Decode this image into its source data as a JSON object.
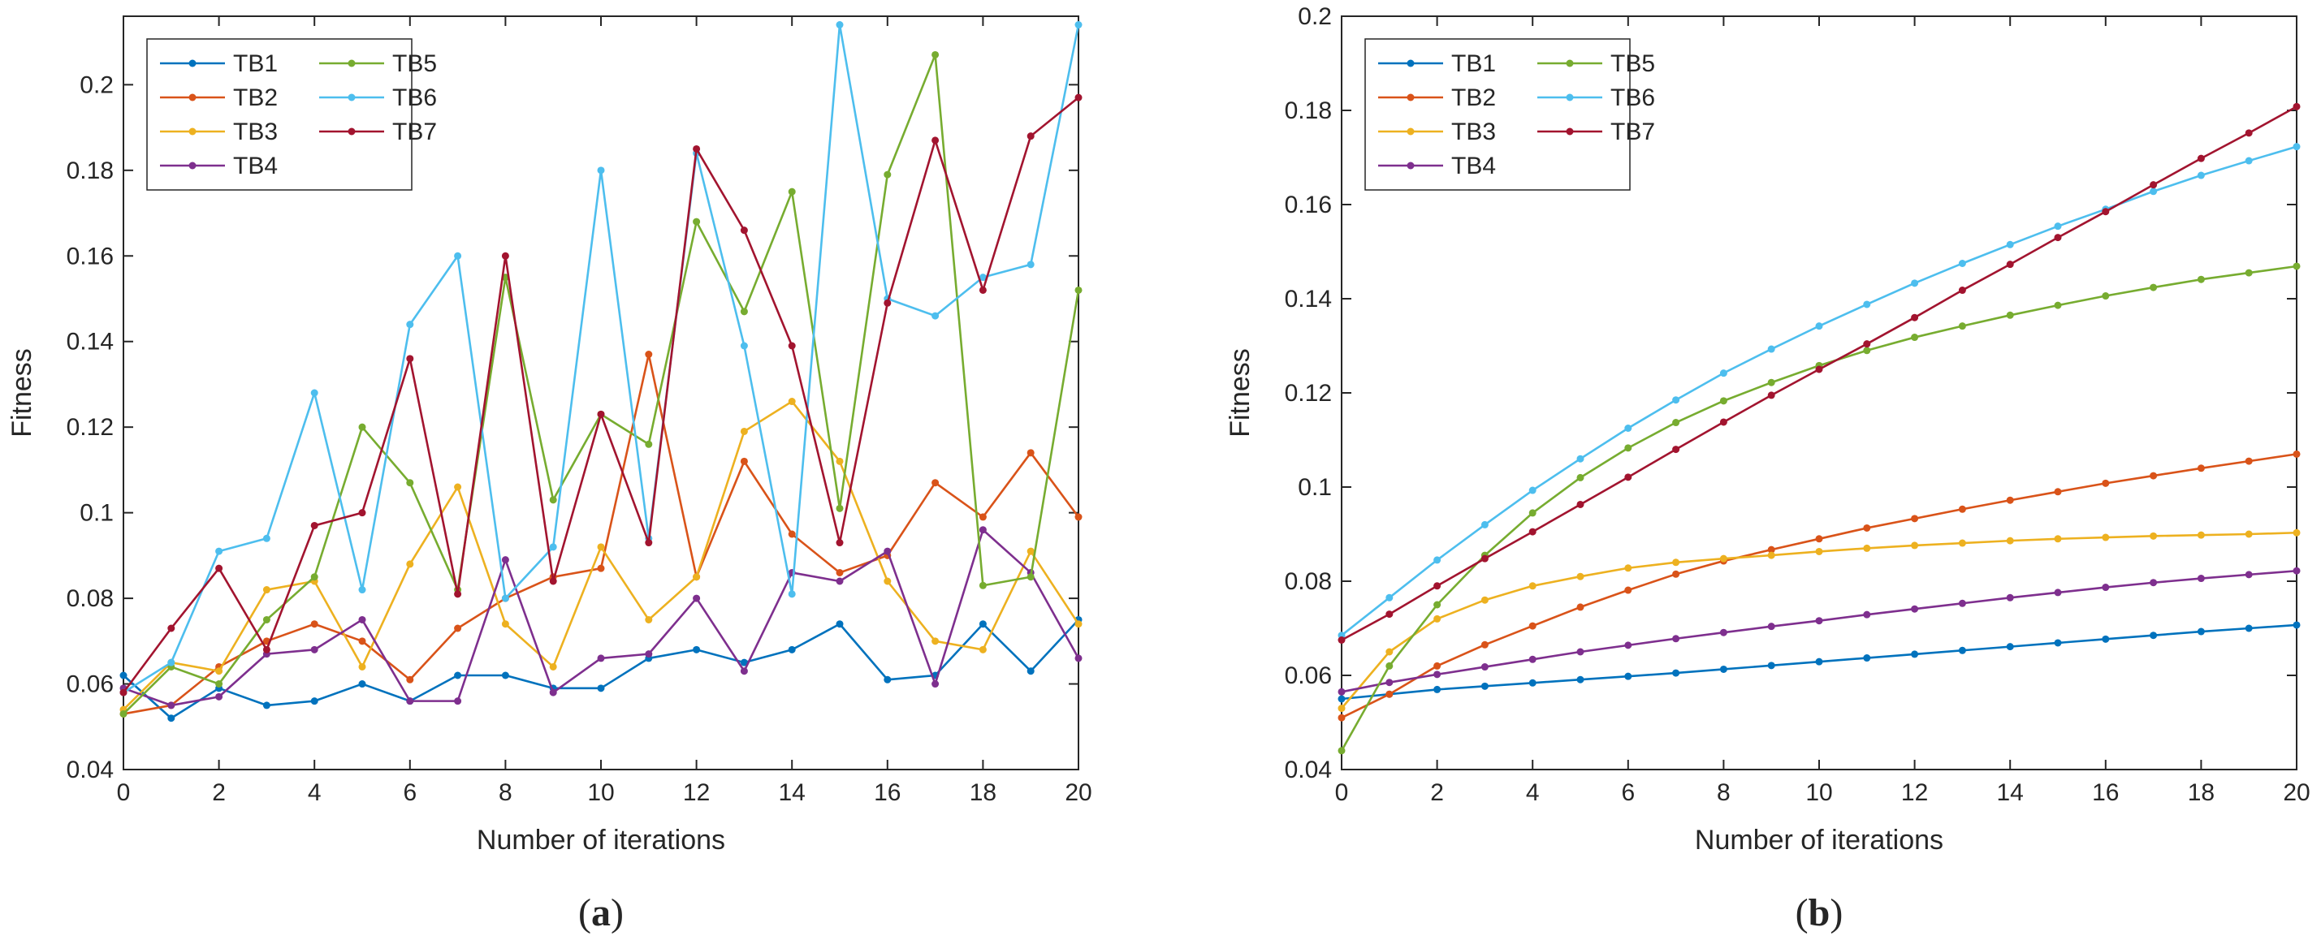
{
  "colors": {
    "TB1": "#0072BD",
    "TB2": "#D95319",
    "TB3": "#EDB120",
    "TB4": "#7E2F8E",
    "TB5": "#77AC30",
    "TB6": "#4DBEEE",
    "TB7": "#A2142F"
  },
  "chart_data": [
    {
      "type": "line",
      "panel_label": "a",
      "caption": "(a)",
      "xlabel": "Number of iterations",
      "ylabel": "Fitness",
      "xlim": [
        0,
        20
      ],
      "ylim": [
        0.04,
        0.216
      ],
      "xticks": [
        0,
        2,
        4,
        6,
        8,
        10,
        12,
        14,
        16,
        18,
        20
      ],
      "yticks": [
        0.04,
        0.06,
        0.08,
        0.1,
        0.12,
        0.14,
        0.16,
        0.18,
        0.2
      ],
      "ytick_labels": [
        "0.04",
        "0.06",
        "0.08",
        "0.1",
        "0.12",
        "0.14",
        "0.16",
        "0.18",
        "0.2"
      ],
      "legend": "top-left",
      "x": [
        0,
        1,
        2,
        3,
        4,
        5,
        6,
        7,
        8,
        9,
        10,
        11,
        12,
        13,
        14,
        15,
        16,
        17,
        18,
        19,
        20
      ],
      "series": [
        {
          "name": "TB1",
          "values": [
            0.062,
            0.052,
            0.059,
            0.055,
            0.056,
            0.06,
            0.056,
            0.062,
            0.062,
            0.059,
            0.059,
            0.066,
            0.068,
            0.065,
            0.068,
            0.074,
            0.061,
            0.062,
            0.074,
            0.063,
            0.075
          ]
        },
        {
          "name": "TB2",
          "values": [
            0.053,
            0.055,
            0.064,
            0.07,
            0.074,
            0.07,
            0.061,
            0.073,
            0.08,
            0.085,
            0.087,
            0.137,
            0.085,
            0.112,
            0.095,
            0.086,
            0.09,
            0.107,
            0.099,
            0.114,
            0.099
          ]
        },
        {
          "name": "TB3",
          "values": [
            0.054,
            0.065,
            0.063,
            0.082,
            0.084,
            0.064,
            0.088,
            0.106,
            0.074,
            0.064,
            0.092,
            0.075,
            0.085,
            0.119,
            0.126,
            0.112,
            0.084,
            0.07,
            0.068,
            0.091,
            0.074
          ]
        },
        {
          "name": "TB4",
          "values": [
            0.059,
            0.055,
            0.057,
            0.067,
            0.068,
            0.075,
            0.056,
            0.056,
            0.089,
            0.058,
            0.066,
            0.067,
            0.08,
            0.063,
            0.086,
            0.084,
            0.091,
            0.06,
            0.096,
            0.086,
            0.066
          ]
        },
        {
          "name": "TB5",
          "values": [
            0.053,
            0.064,
            0.06,
            0.075,
            0.085,
            0.12,
            0.107,
            0.082,
            0.155,
            0.103,
            0.123,
            0.116,
            0.168,
            0.147,
            0.175,
            0.101,
            0.179,
            0.207,
            0.083,
            0.085,
            0.152
          ]
        },
        {
          "name": "TB6",
          "values": [
            0.058,
            0.065,
            0.091,
            0.094,
            0.128,
            0.082,
            0.144,
            0.16,
            0.08,
            0.092,
            0.18,
            0.094,
            0.184,
            0.139,
            0.081,
            0.214,
            0.15,
            0.146,
            0.155,
            0.158,
            0.214
          ]
        },
        {
          "name": "TB7",
          "values": [
            0.058,
            0.073,
            0.087,
            0.068,
            0.097,
            0.1,
            0.136,
            0.081,
            0.16,
            0.084,
            0.123,
            0.093,
            0.185,
            0.166,
            0.139,
            0.093,
            0.149,
            0.187,
            0.152,
            0.188,
            0.197
          ]
        }
      ]
    },
    {
      "type": "line",
      "panel_label": "b",
      "caption": "(b)",
      "xlabel": "Number of iterations",
      "ylabel": "Fitness",
      "xlim": [
        0,
        20
      ],
      "ylim": [
        0.04,
        0.2
      ],
      "xticks": [
        0,
        2,
        4,
        6,
        8,
        10,
        12,
        14,
        16,
        18,
        20
      ],
      "yticks": [
        0.04,
        0.06,
        0.08,
        0.1,
        0.12,
        0.14,
        0.16,
        0.18,
        0.2
      ],
      "ytick_labels": [
        "0.04",
        "0.06",
        "0.08",
        "0.1",
        "0.12",
        "0.14",
        "0.16",
        "0.18",
        "0.2"
      ],
      "legend": "top-left",
      "x": [
        0,
        1,
        2,
        3,
        4,
        5,
        6,
        7,
        8,
        9,
        10,
        11,
        12,
        13,
        14,
        15,
        16,
        17,
        18,
        19,
        20
      ],
      "series": [
        {
          "name": "TB1",
          "values": [
            0.055,
            0.056,
            0.057,
            0.0577,
            0.0584,
            0.0591,
            0.0598,
            0.0605,
            0.0613,
            0.0621,
            0.0629,
            0.0637,
            0.0645,
            0.0653,
            0.0661,
            0.0669,
            0.0677,
            0.0685,
            0.0693,
            0.07,
            0.0707
          ]
        },
        {
          "name": "TB2",
          "values": [
            0.051,
            0.056,
            0.062,
            0.0665,
            0.0705,
            0.0745,
            0.0781,
            0.0815,
            0.0843,
            0.0867,
            0.089,
            0.0913,
            0.0933,
            0.0953,
            0.0972,
            0.099,
            0.1008,
            0.1024,
            0.104,
            0.1055,
            0.107
          ]
        },
        {
          "name": "TB3",
          "values": [
            0.053,
            0.065,
            0.072,
            0.076,
            0.079,
            0.081,
            0.0828,
            0.084,
            0.0848,
            0.0855,
            0.0863,
            0.087,
            0.0876,
            0.0881,
            0.0886,
            0.089,
            0.0893,
            0.0896,
            0.0898,
            0.09,
            0.0903
          ]
        },
        {
          "name": "TB4",
          "values": [
            0.0565,
            0.0585,
            0.0602,
            0.0618,
            0.0634,
            0.065,
            0.0664,
            0.0678,
            0.0691,
            0.0704,
            0.0716,
            0.0729,
            0.0741,
            0.0753,
            0.0765,
            0.0776,
            0.0787,
            0.0797,
            0.0806,
            0.0814,
            0.0822
          ]
        },
        {
          "name": "TB5",
          "values": [
            0.044,
            0.062,
            0.075,
            0.0855,
            0.0945,
            0.102,
            0.1083,
            0.1137,
            0.1183,
            0.1222,
            0.1258,
            0.129,
            0.1318,
            0.1342,
            0.1365,
            0.1386,
            0.1406,
            0.1424,
            0.1441,
            0.1455,
            0.1469
          ]
        },
        {
          "name": "TB6",
          "values": [
            0.0685,
            0.0765,
            0.0845,
            0.092,
            0.0993,
            0.106,
            0.1125,
            0.1185,
            0.1242,
            0.1293,
            0.1342,
            0.1388,
            0.1433,
            0.1475,
            0.1515,
            0.1554,
            0.159,
            0.1628,
            0.1662,
            0.1693,
            0.1723
          ]
        },
        {
          "name": "TB7",
          "values": [
            0.0675,
            0.073,
            0.079,
            0.0848,
            0.0905,
            0.0963,
            0.1021,
            0.108,
            0.1138,
            0.1195,
            0.125,
            0.1304,
            0.136,
            0.1418,
            0.1473,
            0.153,
            0.1585,
            0.1642,
            0.1698,
            0.1752,
            0.1808
          ]
        }
      ]
    }
  ]
}
